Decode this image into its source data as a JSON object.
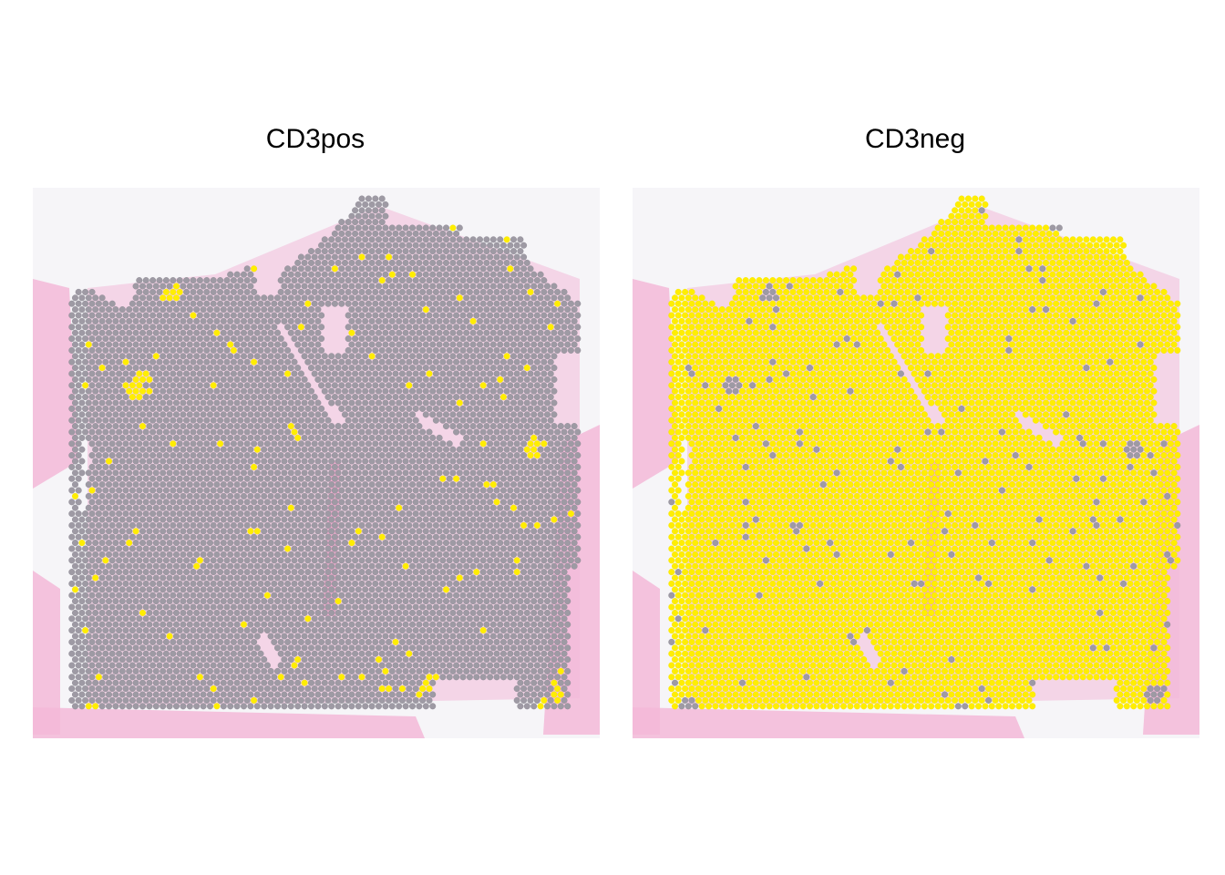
{
  "colors": {
    "background": "#f6f5f8",
    "tissue": "#f3b9d8",
    "tissue_dark": "#ee9fc8",
    "spot_in_group": "#ffee00",
    "spot_out_group": "#9e9aa4",
    "spot_outline": "#8a8690"
  },
  "chart_data": [
    {
      "type": "scatter",
      "title": "CD3pos",
      "description_kind": "spatial spot map over tissue image",
      "grid": false,
      "legend": "none",
      "highlight": "in_group",
      "highlight_color": "#ffee00",
      "base_color": "#9e9aa4",
      "highlighted_spots_approx": 95,
      "highlight_clusters": [
        {
          "row": 4,
          "col": 16
        },
        {
          "row": 5,
          "col": 16
        },
        {
          "row": 4,
          "col": 17
        },
        {
          "row": 12,
          "col": 13
        },
        {
          "row": 13,
          "col": 13
        },
        {
          "row": 12,
          "col": 15
        },
        {
          "row": 24,
          "col": 62
        },
        {
          "row": 25,
          "col": 62
        },
        {
          "row": 26,
          "col": 63
        }
      ]
    },
    {
      "type": "scatter",
      "title": "CD3neg",
      "description_kind": "spatial spot map over tissue image",
      "grid": false,
      "legend": "none",
      "highlight": "in_group",
      "highlight_color": "#ffee00",
      "base_color": "#9e9aa4",
      "highlighted_spots_approx": 3900
    }
  ]
}
